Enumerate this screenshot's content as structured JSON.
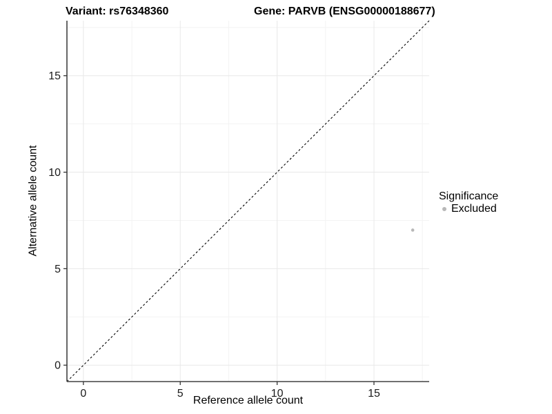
{
  "titles": {
    "variant": "Variant: rs76348360",
    "gene": "Gene: PARVB (ENSG00000188677)"
  },
  "legend": {
    "title": "Significance",
    "items": [
      {
        "label": "Excluded",
        "color": "#b8b8b8"
      }
    ]
  },
  "chart_data": {
    "type": "scatter",
    "title": "Variant: rs76348360   Gene: PARVB (ENSG00000188677)",
    "xlabel": "Reference allele count",
    "ylabel": "Alternative allele count",
    "xlim": [
      -0.85,
      17.85
    ],
    "ylim": [
      -0.85,
      17.85
    ],
    "x_ticks": [
      0,
      5,
      10,
      15
    ],
    "y_ticks": [
      0,
      5,
      10,
      15
    ],
    "x_minor_ticks": [
      2.5,
      7.5,
      12.5,
      17.5
    ],
    "y_minor_ticks": [
      2.5,
      7.5,
      12.5,
      17.5
    ],
    "grid": true,
    "legend_position": "right",
    "series": [
      {
        "name": "Excluded",
        "color": "#b8b8b8",
        "points": [
          {
            "x": 17,
            "y": 7
          }
        ]
      }
    ],
    "reference_line": {
      "type": "identity",
      "from": -0.85,
      "to": 17.85,
      "style": "dashed",
      "color": "#000000"
    }
  },
  "colors": {
    "background": "#ffffff",
    "axis_line": "#404040",
    "tick_mark": "#333333",
    "tick_label": "#1a1a1a",
    "grid_major": "#e8e8e8",
    "grid_minor": "#f3f3f3",
    "point": "#b8b8b8"
  }
}
